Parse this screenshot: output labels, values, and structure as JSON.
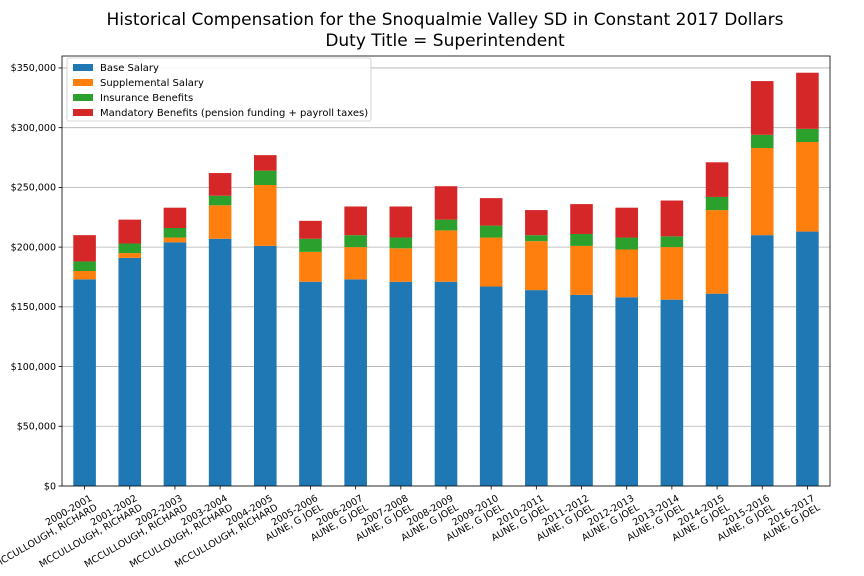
{
  "chart_data": {
    "type": "bar",
    "stacked": true,
    "title": "Historical Compensation for the Snoqualmie Valley SD in Constant 2017 Dollars",
    "subtitle": "Duty Title = Superintendent",
    "xlabel": "",
    "ylabel": "",
    "ylim": [
      0,
      360000
    ],
    "yticks": [
      {
        "value": 0,
        "label": "$0"
      },
      {
        "value": 50000,
        "label": "$50,000"
      },
      {
        "value": 100000,
        "label": "$100,000"
      },
      {
        "value": 150000,
        "label": "$150,000"
      },
      {
        "value": 200000,
        "label": "$200,000"
      },
      {
        "value": 250000,
        "label": "$250,000"
      },
      {
        "value": 300000,
        "label": "$300,000"
      },
      {
        "value": 350000,
        "label": "$350,000"
      }
    ],
    "grid": "horizontal",
    "legend_position": "top-left",
    "categories": [
      [
        "2000-2001",
        "MCCULLOUGH, RICHARD"
      ],
      [
        "2001-2002",
        "MCCULLOUGH, RICHARD"
      ],
      [
        "2002-2003",
        "MCCULLOUGH, RICHARD"
      ],
      [
        "2003-2004",
        "MCCULLOUGH, RICHARD"
      ],
      [
        "2004-2005",
        "MCCULLOUGH, RICHARD"
      ],
      [
        "2005-2006",
        "AUNE, G JOEL"
      ],
      [
        "2006-2007",
        "AUNE, G JOEL"
      ],
      [
        "2007-2008",
        "AUNE, G JOEL"
      ],
      [
        "2008-2009",
        "AUNE, G JOEL"
      ],
      [
        "2009-2010",
        "AUNE, G JOEL"
      ],
      [
        "2010-2011",
        "AUNE, G JOEL"
      ],
      [
        "2011-2012",
        "AUNE, G JOEL"
      ],
      [
        "2012-2013",
        "AUNE, G JOEL"
      ],
      [
        "2013-2014",
        "AUNE, G JOEL"
      ],
      [
        "2014-2015",
        "AUNE, G JOEL"
      ],
      [
        "2015-2016",
        "AUNE, G JOEL"
      ],
      [
        "2016-2017",
        "AUNE, G JOEL"
      ]
    ],
    "series": [
      {
        "name": "Base Salary",
        "color": "#1f77b4",
        "values": [
          173000,
          191000,
          204000,
          207000,
          201000,
          171000,
          173000,
          171000,
          171000,
          167000,
          164000,
          160000,
          158000,
          156000,
          161000,
          210000,
          213000
        ]
      },
      {
        "name": "Supplemental Salary",
        "color": "#ff7f0e",
        "values": [
          7000,
          4000,
          4000,
          28000,
          51000,
          25000,
          27000,
          28000,
          43000,
          41000,
          41000,
          41000,
          40000,
          44000,
          70000,
          73000,
          75000
        ]
      },
      {
        "name": "Insurance Benefits",
        "color": "#2ca02c",
        "values": [
          8000,
          8000,
          8000,
          8000,
          12000,
          11000,
          10000,
          9000,
          9000,
          10000,
          5000,
          10000,
          10000,
          9000,
          11000,
          11000,
          11000
        ]
      },
      {
        "name": "Mandatory Benefits (pension funding + payroll taxes)",
        "color": "#d62728",
        "values": [
          22000,
          20000,
          17000,
          19000,
          13000,
          15000,
          24000,
          26000,
          28000,
          23000,
          21000,
          25000,
          25000,
          30000,
          29000,
          45000,
          47000
        ]
      }
    ]
  }
}
